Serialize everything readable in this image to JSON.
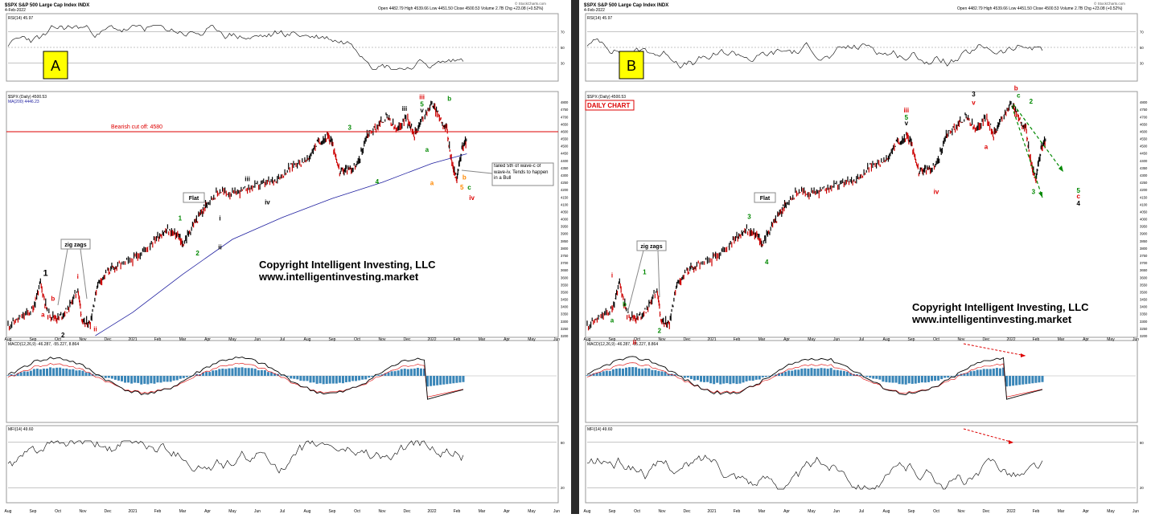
{
  "panels": [
    {
      "id": "A",
      "symbol": "$SPX S&P 500 Large Cap Index INDX",
      "date": "4-Feb-2022",
      "quote": "Open 4482.79  High 4539.66  Low 4451.50  Close 4500.53  Volume 2.7B  Chg +23.08 (+0.52%)",
      "credit": "© StockCharts.com",
      "panel_letter": "A",
      "rsi_label": "RSI(14) 45.97",
      "price_label": "$SPX (Daily) 4500.53",
      "ma_label": "MA(200) 4446.23",
      "macd_label": "MACD(12,26,9) -46.287, -55.227, 8.864",
      "mfi_label": "MFI(14) 49.60",
      "cutoff_label": "Bearish cut off: 4580",
      "daily_chart_label": "",
      "copyright_line1": "Copyright Intelligent Investing, LLC",
      "copyright_line2": "www.intelligentinvesting.market",
      "note_box": "failed 5th of wave-c of wave-iv. Tends to happen in a Bull",
      "flat_label": "Flat",
      "zigzag_label": "zig zags"
    },
    {
      "id": "B",
      "symbol": "$SPX S&P 500 Large Cap Index INDX",
      "date": "4-Feb-2022",
      "quote": "Open 4482.79  High 4539.66  Low 4451.50  Close 4500.53  Volume 2.7B  Chg +23.08 (+0.52%)",
      "credit": "© StockCharts.com",
      "panel_letter": "B",
      "rsi_label": "RSI(14) 45.97",
      "price_label": "$SPX (Daily) 4500.53",
      "ma_label": "",
      "macd_label": "MACD(12,26,9) -46.287, -55.227, 8.864",
      "mfi_label": "MFI(14) 49.60",
      "cutoff_label": "",
      "daily_chart_label": "DAILY CHART",
      "copyright_line1": "Copyright Intelligent Investing, LLC",
      "copyright_line2": "www.intelligentinvesting.market",
      "note_box": "",
      "flat_label": "Flat",
      "zigzag_label": "zig zags"
    }
  ],
  "chart_data": [
    {
      "type": "line",
      "title": "$SPX S&P 500 Large Cap Index INDX",
      "x": [
        "Aug",
        "Sep",
        "Oct",
        "Nov",
        "Dec",
        "2021",
        "Feb",
        "Mar",
        "Apr",
        "May",
        "Jun",
        "Jul",
        "Aug",
        "Sep",
        "Oct",
        "Nov",
        "Dec",
        "2022",
        "Feb",
        "Mar",
        "Apr",
        "May",
        "Jun"
      ],
      "ylim": [
        3200,
        4850
      ],
      "y_ticks": [
        3200,
        3250,
        3300,
        3350,
        3400,
        3450,
        3500,
        3550,
        3600,
        3650,
        3700,
        3750,
        3800,
        3850,
        3900,
        3950,
        4000,
        4050,
        4100,
        4150,
        4200,
        4250,
        4300,
        4350,
        4400,
        4450,
        4500,
        4550,
        4600,
        4650,
        4700,
        4750,
        4800
      ],
      "series": [
        {
          "name": "$SPX (Daily)",
          "x": [
            0,
            0.5,
            1,
            1.3,
            1.6,
            2,
            2.4,
            2.8,
            3,
            3.3,
            3.6,
            4,
            4.4,
            5,
            5.5,
            6,
            6.4,
            6.8,
            7,
            7.4,
            7.8,
            8,
            8.5,
            9,
            9.5,
            10,
            10.5,
            11,
            11.5,
            12,
            12.4,
            12.8,
            13,
            13.3,
            13.6,
            14,
            14.4,
            14.8,
            15.2,
            15.6,
            16,
            16.3,
            16.6,
            17,
            17.3,
            17.6,
            17.8,
            18,
            18.2,
            18.4
          ],
          "values": [
            3270,
            3320,
            3380,
            3560,
            3350,
            3320,
            3380,
            3520,
            3280,
            3290,
            3560,
            3640,
            3680,
            3720,
            3790,
            3880,
            3920,
            3890,
            3820,
            3950,
            4050,
            4120,
            4190,
            4170,
            4200,
            4230,
            4250,
            4300,
            4380,
            4400,
            4520,
            4560,
            4530,
            4320,
            4340,
            4360,
            4580,
            4630,
            4700,
            4600,
            4710,
            4580,
            4680,
            4790,
            4700,
            4610,
            4380,
            4270,
            4480,
            4540
          ]
        },
        {
          "name": "MA(200)",
          "x": [
            3.5,
            5,
            7,
            9,
            11,
            13,
            15,
            17,
            18.4
          ],
          "values": [
            3200,
            3360,
            3620,
            3860,
            4010,
            4140,
            4250,
            4380,
            4446
          ]
        }
      ],
      "rsi": {
        "label": "RSI(14) 45.97",
        "ylim": [
          10,
          90
        ],
        "levels": [
          30,
          50,
          70
        ],
        "last": 45.97
      },
      "macd": {
        "label": "MACD(12,26,9) -46.287, -55.227, 8.864",
        "macd": -46.287,
        "signal": -55.227,
        "histogram": 8.864
      },
      "mfi": {
        "label": "MFI(14) 49.60",
        "levels": [
          20,
          80
        ],
        "last": 49.6
      }
    },
    {
      "type": "line",
      "title": "$SPX S&P 500 Large Cap Index INDX",
      "x": [
        "Aug",
        "Sep",
        "Oct",
        "Nov",
        "Dec",
        "2021",
        "Feb",
        "Mar",
        "Apr",
        "May",
        "Jun",
        "Jul",
        "Aug",
        "Sep",
        "Oct",
        "Nov",
        "Dec",
        "2022",
        "Feb",
        "Mar",
        "Apr",
        "May",
        "Jun"
      ],
      "ylim": [
        3200,
        4850
      ],
      "y_ticks": [
        3200,
        3250,
        3300,
        3350,
        3400,
        3450,
        3500,
        3550,
        3600,
        3650,
        3700,
        3750,
        3800,
        3850,
        3900,
        3950,
        4000,
        4050,
        4100,
        4150,
        4200,
        4250,
        4300,
        4350,
        4400,
        4450,
        4500,
        4550,
        4600,
        4650,
        4700,
        4750,
        4800
      ],
      "series": [
        {
          "name": "$SPX (Daily)",
          "x": [
            0,
            0.5,
            1,
            1.3,
            1.6,
            2,
            2.4,
            2.8,
            3,
            3.3,
            3.6,
            4,
            4.4,
            5,
            5.5,
            6,
            6.4,
            6.8,
            7,
            7.4,
            7.8,
            8,
            8.5,
            9,
            9.5,
            10,
            10.5,
            11,
            11.5,
            12,
            12.4,
            12.8,
            13,
            13.3,
            13.6,
            14,
            14.4,
            14.8,
            15.2,
            15.6,
            16,
            16.3,
            16.6,
            17,
            17.3,
            17.6,
            17.8,
            18,
            18.2,
            18.4
          ],
          "values": [
            3270,
            3320,
            3380,
            3560,
            3350,
            3320,
            3380,
            3520,
            3280,
            3290,
            3560,
            3640,
            3680,
            3720,
            3790,
            3880,
            3920,
            3890,
            3820,
            3950,
            4050,
            4120,
            4190,
            4170,
            4200,
            4230,
            4250,
            4300,
            4380,
            4400,
            4520,
            4560,
            4530,
            4320,
            4340,
            4360,
            4580,
            4630,
            4700,
            4600,
            4710,
            4580,
            4680,
            4790,
            4700,
            4610,
            4380,
            4270,
            4480,
            4540
          ]
        }
      ],
      "projection": {
        "x": [
          18.4,
          19.5
        ],
        "values": [
          4540,
          4100
        ]
      },
      "rsi": {
        "label": "RSI(14) 45.97",
        "ylim": [
          10,
          90
        ],
        "levels": [
          30,
          50,
          70
        ],
        "last": 45.97
      },
      "macd": {
        "label": "MACD(12,26,9) -46.287, -55.227, 8.864",
        "macd": -46.287,
        "signal": -55.227,
        "histogram": 8.864
      },
      "mfi": {
        "label": "MFI(14) 49.60",
        "levels": [
          20,
          80
        ],
        "last": 49.6
      }
    }
  ],
  "wave_labels": {
    "A": [
      {
        "t": "1",
        "c": "#000",
        "x": 1.5,
        "y": 3610,
        "s": 11
      },
      {
        "t": "i",
        "c": "#d00",
        "x": 1.1,
        "y": 3440
      },
      {
        "t": "b",
        "c": "#d00",
        "x": 1.8,
        "y": 3440
      },
      {
        "t": "a",
        "c": "#d00",
        "x": 1.4,
        "y": 3330
      },
      {
        "t": "ii",
        "c": "#d00",
        "x": 3.5,
        "y": 3230
      },
      {
        "t": "i",
        "c": "#d00",
        "x": 2.8,
        "y": 3590
      },
      {
        "t": "2",
        "c": "#000",
        "x": 2.2,
        "y": 3190
      },
      {
        "t": "1",
        "c": "#080",
        "x": 6.9,
        "y": 3990
      },
      {
        "t": "2",
        "c": "#080",
        "x": 7.6,
        "y": 3750
      },
      {
        "t": "i",
        "c": "#000",
        "x": 8.5,
        "y": 3990
      },
      {
        "t": "ii",
        "c": "#000",
        "x": 8.5,
        "y": 3790
      },
      {
        "t": "iii",
        "c": "#000",
        "x": 9.6,
        "y": 4260
      },
      {
        "t": "iv",
        "c": "#000",
        "x": 10.4,
        "y": 4100
      },
      {
        "t": "3",
        "c": "#080",
        "x": 13.7,
        "y": 4610
      },
      {
        "t": "4",
        "c": "#080",
        "x": 14.8,
        "y": 4240
      },
      {
        "t": "iii",
        "c": "#d00",
        "x": 16.6,
        "y": 4820
      },
      {
        "t": "5",
        "c": "#080",
        "x": 16.6,
        "y": 4770
      },
      {
        "t": "v",
        "c": "#000",
        "x": 16.6,
        "y": 4730
      },
      {
        "t": "iii",
        "c": "#000",
        "x": 15.9,
        "y": 4740
      },
      {
        "t": "iv",
        "c": "#000",
        "x": 16.1,
        "y": 4620
      },
      {
        "t": "a",
        "c": "#080",
        "x": 16.8,
        "y": 4460
      },
      {
        "t": "b",
        "c": "#080",
        "x": 17.7,
        "y": 4810
      },
      {
        "t": "c",
        "c": "#080",
        "x": 18.5,
        "y": 4200
      },
      {
        "t": "iv",
        "c": "#d00",
        "x": 18.6,
        "y": 4130
      },
      {
        "t": "5",
        "c": "#f80",
        "x": 18.2,
        "y": 4200
      },
      {
        "t": "a",
        "c": "#f80",
        "x": 17.0,
        "y": 4230
      },
      {
        "t": "b",
        "c": "#f80",
        "x": 18.3,
        "y": 4270
      }
    ],
    "B": [
      {
        "t": "i",
        "c": "#d00",
        "x": 1.0,
        "y": 3600
      },
      {
        "t": "a",
        "c": "#080",
        "x": 1.0,
        "y": 3290
      },
      {
        "t": "b",
        "c": "#080",
        "x": 1.5,
        "y": 3400
      },
      {
        "t": "1",
        "c": "#080",
        "x": 2.3,
        "y": 3620
      },
      {
        "t": "2",
        "c": "#080",
        "x": 2.9,
        "y": 3220
      },
      {
        "t": "ii",
        "c": "#d00",
        "x": 1.9,
        "y": 3140
      },
      {
        "t": "3",
        "c": "#080",
        "x": 6.5,
        "y": 4000
      },
      {
        "t": "4",
        "c": "#080",
        "x": 7.2,
        "y": 3690
      },
      {
        "t": "iii",
        "c": "#d00",
        "x": 12.8,
        "y": 4730
      },
      {
        "t": "5",
        "c": "#080",
        "x": 12.8,
        "y": 4680
      },
      {
        "t": "v",
        "c": "#000",
        "x": 12.8,
        "y": 4640
      },
      {
        "t": "3",
        "c": "#000",
        "x": 15.5,
        "y": 4840
      },
      {
        "t": "v",
        "c": "#d00",
        "x": 15.5,
        "y": 4780
      },
      {
        "t": "b",
        "c": "#d00",
        "x": 17.2,
        "y": 4880
      },
      {
        "t": "c",
        "c": "#080",
        "x": 17.3,
        "y": 4830
      },
      {
        "t": "2",
        "c": "#080",
        "x": 17.8,
        "y": 4790
      },
      {
        "t": "3",
        "c": "#080",
        "x": 17.9,
        "y": 4170
      },
      {
        "t": "5",
        "c": "#080",
        "x": 19.7,
        "y": 4180
      },
      {
        "t": "c",
        "c": "#d00",
        "x": 19.7,
        "y": 4140
      },
      {
        "t": "4",
        "c": "#000",
        "x": 19.7,
        "y": 4090
      },
      {
        "t": "a",
        "c": "#d00",
        "x": 16.0,
        "y": 4480
      },
      {
        "t": "iv",
        "c": "#d00",
        "x": 14.0,
        "y": 4170
      }
    ]
  }
}
